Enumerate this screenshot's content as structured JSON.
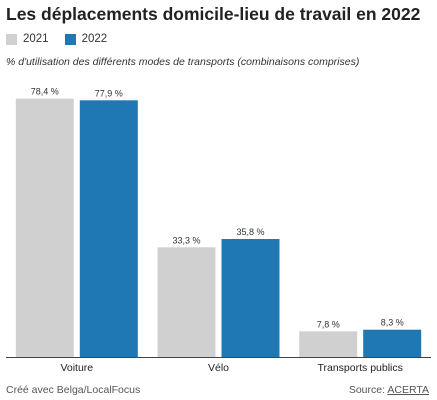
{
  "chart_data": {
    "type": "bar",
    "title": "Les déplacements domicile-lieu de travail en 2022",
    "subtitle": "% d'utilisation des différents modes de transports (combinaisons comprises)",
    "categories": [
      "Voiture",
      "Vélo",
      "Transports publics"
    ],
    "series": [
      {
        "name": "2021",
        "color": "#d0d0d0",
        "values": [
          78.4,
          33.3,
          7.8
        ],
        "labels": [
          "78,4 %",
          "33,3 %",
          "7,8 %"
        ]
      },
      {
        "name": "2022",
        "color": "#1f78b4",
        "values": [
          77.9,
          35.8,
          8.3
        ],
        "labels": [
          "77,9 %",
          "35,8 %",
          "8,3 %"
        ]
      }
    ],
    "ylim": [
      0,
      80
    ],
    "grid": false,
    "legend_position": "top-left"
  },
  "footer": {
    "credit": "Créé avec Belga/LocalFocus",
    "source_label": "Source:",
    "source_name": "ACERTA"
  }
}
